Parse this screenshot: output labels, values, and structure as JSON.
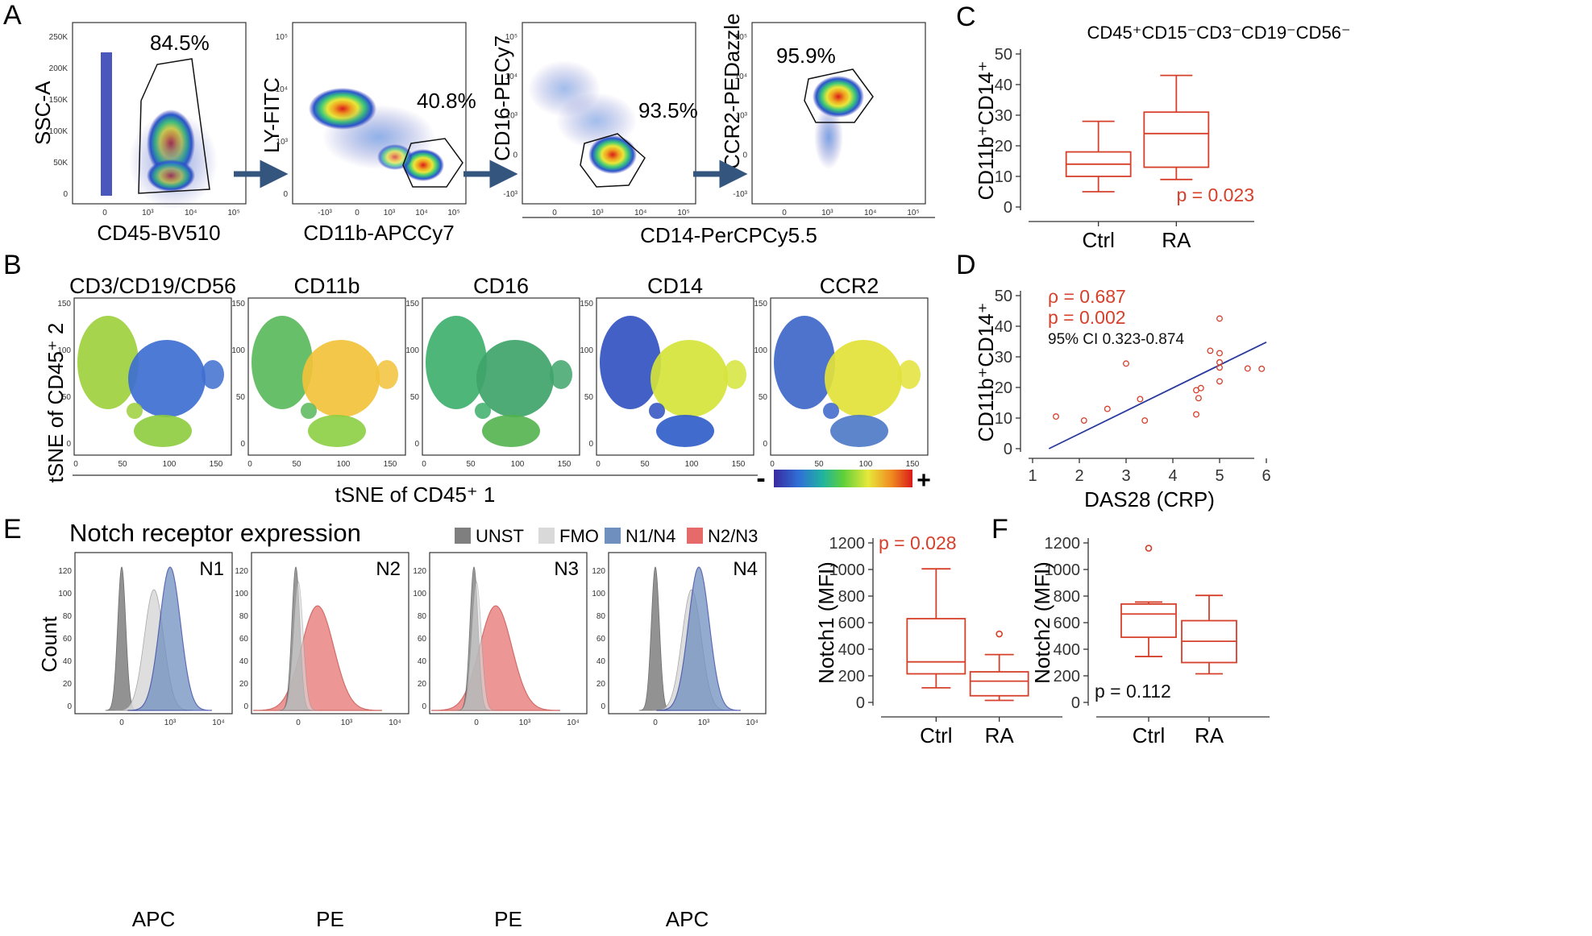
{
  "panel_letters": {
    "a": "A",
    "b": "B",
    "c": "C",
    "d": "D",
    "e": "E",
    "f": "F"
  },
  "colors": {
    "box_red": "#d6402b",
    "line_blue": "#2a3a9e",
    "arrow": "#34557e",
    "unst": "#7f7f7f",
    "fmo": "#d9d9d9",
    "n14": "#6f8fbf",
    "n23": "#e66a6a"
  },
  "panel_a": {
    "plots": [
      {
        "ylabel": "SSC-A",
        "xlabel": "CD45-BV510",
        "gate_pct": "84.5%",
        "yticks": [
          "250K",
          "200K",
          "150K",
          "100K",
          "50K",
          "0"
        ],
        "xticks": [
          "0",
          "10³",
          "10⁴",
          "10⁵"
        ]
      },
      {
        "ylabel": "LY-FITC",
        "xlabel": "CD11b-APCCy7",
        "gate_pct": "40.8%",
        "yticks": [
          "10⁵",
          "10⁴",
          "10³",
          "0"
        ],
        "xticks": [
          "-10³",
          "0",
          "10³",
          "10⁴",
          "10⁵"
        ]
      },
      {
        "ylabel": "CD16-PECy7",
        "xlabel": "",
        "gate_pct": "93.5%",
        "yticks": [
          "10⁵",
          "10⁴",
          "10³",
          "0",
          "-10³"
        ],
        "xticks": [
          "0",
          "10³",
          "10⁴",
          "10⁵"
        ]
      },
      {
        "ylabel": "CCR2-PEDazzle",
        "xlabel": "",
        "gate_pct": "95.9%",
        "yticks": [
          "10⁵",
          "10⁴",
          "10³",
          "0",
          "-10³"
        ],
        "xticks": [
          "0",
          "10³",
          "10⁴",
          "10⁵"
        ]
      }
    ],
    "shared_xlabel": "CD14-PerCPCy5.5"
  },
  "panel_b": {
    "titles": [
      "CD3/CD19/CD56",
      "CD11b",
      "CD16",
      "CD14",
      "CCR2"
    ],
    "ylabel": "tSNE of CD45⁺ 2",
    "xlabel": "tSNE of CD45⁺ 1",
    "xticks": [
      "0",
      "50",
      "100",
      "150"
    ],
    "yticks": [
      "150",
      "100",
      "50",
      "0"
    ],
    "scale_min": "-",
    "scale_max": "+"
  },
  "panel_e": {
    "title": "Notch receptor expression",
    "legend": [
      "UNST",
      "FMO",
      "N1/N4",
      "N2/N3"
    ],
    "ylabel": "Count",
    "plots": [
      {
        "label": "N1",
        "xlabel": "APC",
        "yticks": [
          "120",
          "100",
          "80",
          "60",
          "40",
          "20",
          "0"
        ]
      },
      {
        "label": "N2",
        "xlabel": "PE",
        "yticks": [
          "120",
          "100",
          "80",
          "60",
          "40",
          "20",
          "0"
        ]
      },
      {
        "label": "N3",
        "xlabel": "PE",
        "yticks": [
          "120",
          "100",
          "80",
          "60",
          "40",
          "20",
          "0"
        ]
      },
      {
        "label": "N4",
        "xlabel": "APC",
        "yticks": [
          "120",
          "100",
          "80",
          "60",
          "40",
          "20",
          "0"
        ]
      }
    ],
    "xticks": [
      "0",
      "10³",
      "10⁴"
    ]
  },
  "chart_data": [
    {
      "id": "C",
      "type": "box",
      "title": "CD45⁺CD15⁻CD3⁻CD19⁻CD56⁻",
      "ylabel": "CD11b⁺CD14⁺",
      "ylim": [
        0,
        50
      ],
      "yticks": [
        0,
        10,
        20,
        30,
        40,
        50
      ],
      "categories": [
        "Ctrl",
        "RA"
      ],
      "boxes": [
        {
          "min": 5,
          "q1": 10,
          "median": 14,
          "q3": 18,
          "max": 28
        },
        {
          "min": 9,
          "q1": 13,
          "median": 24,
          "q3": 31,
          "max": 43
        }
      ],
      "annotation": "p = 0.023"
    },
    {
      "id": "D",
      "type": "scatter",
      "xlabel": "DAS28 (CRP)",
      "ylabel": "CD11b⁺CD14⁺",
      "xlim": [
        1,
        6
      ],
      "ylim": [
        0,
        50
      ],
      "xticks": [
        1,
        2,
        3,
        4,
        5,
        6
      ],
      "yticks": [
        0,
        10,
        20,
        30,
        40,
        50
      ],
      "points": [
        [
          1.5,
          10.5
        ],
        [
          2.1,
          9.2
        ],
        [
          2.6,
          13
        ],
        [
          3.0,
          27.8
        ],
        [
          3.3,
          16.2
        ],
        [
          3.4,
          9.2
        ],
        [
          4.5,
          19.1
        ],
        [
          4.5,
          11.2
        ],
        [
          4.55,
          16.5
        ],
        [
          4.6,
          19.8
        ],
        [
          4.8,
          32
        ],
        [
          5.0,
          42.5
        ],
        [
          5.0,
          31.2
        ],
        [
          5.0,
          28.2
        ],
        [
          5.0,
          26.5
        ],
        [
          5.0,
          22
        ],
        [
          5.6,
          26.2
        ],
        [
          5.9,
          26.1
        ]
      ],
      "fit_line": [
        [
          1.35,
          0
        ],
        [
          6.0,
          34.8
        ]
      ],
      "annotations": [
        "ρ = 0.687",
        "p = 0.002",
        "95% CI 0.323-0.874"
      ]
    },
    {
      "id": "F1",
      "type": "box",
      "ylabel": "Notch1 (MFI)",
      "ylim": [
        0,
        1200
      ],
      "yticks": [
        0,
        200,
        400,
        600,
        800,
        1000,
        1200
      ],
      "categories": [
        "Ctrl",
        "RA"
      ],
      "boxes": [
        {
          "min": 110,
          "q1": 215,
          "median": 305,
          "q3": 630,
          "max": 1005
        },
        {
          "min": 15,
          "q1": 50,
          "median": 160,
          "q3": 230,
          "max": 360,
          "outliers": [
            515
          ]
        }
      ],
      "annotation": "p = 0.028"
    },
    {
      "id": "F2",
      "type": "box",
      "ylabel": "Notch2 (MFI)",
      "ylim": [
        0,
        1200
      ],
      "yticks": [
        0,
        200,
        400,
        600,
        800,
        1000,
        1200
      ],
      "categories": [
        "Ctrl",
        "RA"
      ],
      "boxes": [
        {
          "min": 345,
          "q1": 490,
          "median": 665,
          "q3": 740,
          "max": 755,
          "outliers": [
            1160
          ]
        },
        {
          "min": 215,
          "q1": 300,
          "median": 460,
          "q3": 615,
          "max": 805
        }
      ],
      "annotation": "p = 0.112"
    }
  ]
}
